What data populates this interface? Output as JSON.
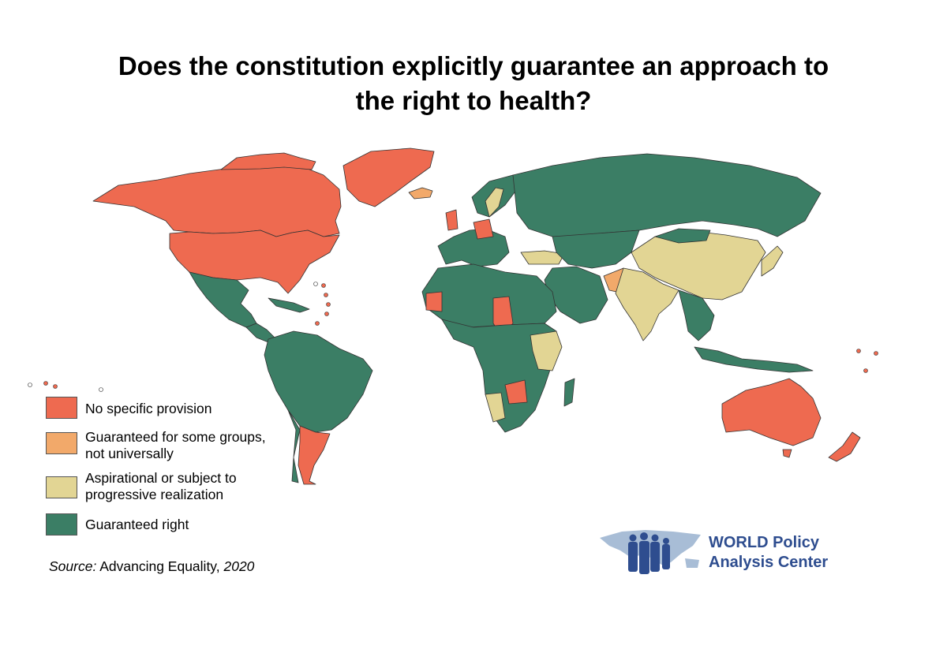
{
  "title_line1": "Does the constitution explicitly guarantee an approach to",
  "title_line2": "the right to health?",
  "legend": [
    {
      "label_line1": "No specific provision",
      "label_line2": "",
      "color": "#ee6a50"
    },
    {
      "label_line1": "Guaranteed for some groups,",
      "label_line2": "not universally",
      "color": "#f2a96a"
    },
    {
      "label_line1": "Aspirational or subject to",
      "label_line2": "progressive realization",
      "color": "#e2d594"
    },
    {
      "label_line1": "Guaranteed right",
      "label_line2": "",
      "color": "#3b7e65"
    }
  ],
  "source": {
    "prefix": "Source:",
    "text": " Advancing Equality, ",
    "year": "2020"
  },
  "brand": {
    "line1": "WORLD Policy",
    "line2": "Analysis Center",
    "color": "#2e4d8f"
  },
  "map_colors": {
    "none": "#ee6a50",
    "some": "#f2a96a",
    "aspirational": "#e2d594",
    "guaranteed": "#3b7e65",
    "nodata": "#ffffff"
  },
  "map_regions": [
    {
      "name": "Canada",
      "category": "none"
    },
    {
      "name": "United States",
      "category": "none"
    },
    {
      "name": "Greenland",
      "category": "none"
    },
    {
      "name": "Mexico",
      "category": "guaranteed"
    },
    {
      "name": "Brazil",
      "category": "guaranteed"
    },
    {
      "name": "Argentina",
      "category": "none"
    },
    {
      "name": "Chile",
      "category": "guaranteed"
    },
    {
      "name": "Russia",
      "category": "guaranteed"
    },
    {
      "name": "China",
      "category": "aspirational"
    },
    {
      "name": "India",
      "category": "aspirational"
    },
    {
      "name": "Pakistan",
      "category": "some"
    },
    {
      "name": "Japan",
      "category": "aspirational"
    },
    {
      "name": "Australia",
      "category": "none"
    },
    {
      "name": "New Zealand",
      "category": "none"
    },
    {
      "name": "Iceland",
      "category": "some"
    }
  ]
}
